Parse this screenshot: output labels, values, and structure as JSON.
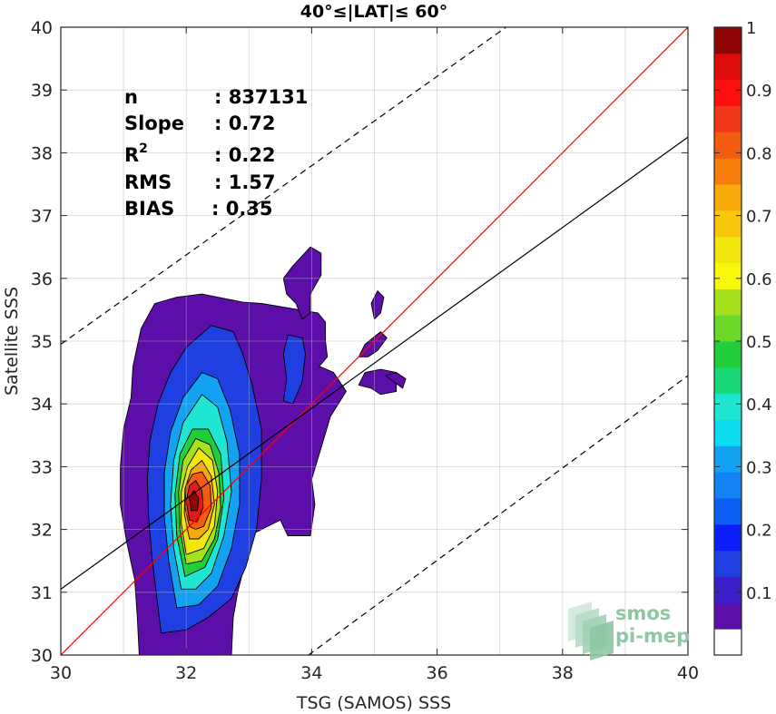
{
  "chart_data": {
    "type": "contour",
    "title": "40°≤|LAT|≤ 60°",
    "xlabel": "TSG (SAMOS) SSS",
    "ylabel": "Satellite SSS",
    "xlim": [
      30,
      40
    ],
    "ylim": [
      30,
      40
    ],
    "xticks": [
      "30",
      "32",
      "34",
      "36",
      "38",
      "40"
    ],
    "yticks": [
      "30",
      "31",
      "32",
      "33",
      "34",
      "35",
      "36",
      "37",
      "38",
      "39",
      "40"
    ],
    "grid": true,
    "stats": [
      {
        "label": "n",
        "value": ": 837131"
      },
      {
        "label": "Slope",
        "value": ": 0.72"
      },
      {
        "label": "R",
        "sup": "2",
        "value": ": 0.22"
      },
      {
        "label": "RMS",
        "value": ": 1.57"
      },
      {
        "label": "BIAS",
        "value": ": 0.35"
      }
    ],
    "lines": [
      {
        "kind": "one-to-one",
        "color": "#ff0000",
        "style": "solid",
        "points": [
          [
            30,
            30
          ],
          [
            40,
            40
          ]
        ]
      },
      {
        "kind": "regression",
        "color": "#000000",
        "style": "solid",
        "points": [
          [
            30,
            31.05
          ],
          [
            40,
            38.25
          ]
        ]
      },
      {
        "kind": "upper-bound",
        "color": "#000000",
        "style": "dashed",
        "points": [
          [
            30,
            34.95
          ],
          [
            37.1,
            40
          ]
        ]
      },
      {
        "kind": "lower-bound",
        "color": "#000000",
        "style": "dashed",
        "points": [
          [
            33.95,
            30
          ],
          [
            40,
            34.45
          ]
        ]
      }
    ],
    "contour_levels": [
      {
        "level": 0.05,
        "color": "#5c0fa8",
        "polygons": [
          [
            [
              31.25,
              30.0
            ],
            [
              31.22,
              30.6
            ],
            [
              31.18,
              31.2
            ],
            [
              31.05,
              31.8
            ],
            [
              30.95,
              32.4
            ],
            [
              30.95,
              33.0
            ],
            [
              31.0,
              33.6
            ],
            [
              31.12,
              34.1
            ],
            [
              31.15,
              34.6
            ],
            [
              31.28,
              35.2
            ],
            [
              31.5,
              35.6
            ],
            [
              31.85,
              35.7
            ],
            [
              32.25,
              35.75
            ],
            [
              32.6,
              35.68
            ],
            [
              32.9,
              35.62
            ],
            [
              33.2,
              35.6
            ],
            [
              33.5,
              35.55
            ],
            [
              33.8,
              35.5
            ],
            [
              34.1,
              35.45
            ],
            [
              34.22,
              35.3
            ],
            [
              34.22,
              35.0
            ],
            [
              34.25,
              34.75
            ],
            [
              34.12,
              34.6
            ],
            [
              34.35,
              34.5
            ],
            [
              34.55,
              34.2
            ],
            [
              34.3,
              33.8
            ],
            [
              34.15,
              33.3
            ],
            [
              34.0,
              32.8
            ],
            [
              34.05,
              32.4
            ],
            [
              33.98,
              31.9
            ],
            [
              33.62,
              31.9
            ],
            [
              33.5,
              32.15
            ],
            [
              33.3,
              32.05
            ],
            [
              33.1,
              31.95
            ],
            [
              33.0,
              31.7
            ],
            [
              32.92,
              31.4
            ],
            [
              32.82,
              31.0
            ],
            [
              32.75,
              30.6
            ],
            [
              32.72,
              30.0
            ]
          ],
          [
            [
              33.85,
              35.35
            ],
            [
              33.75,
              35.6
            ],
            [
              33.6,
              35.75
            ],
            [
              33.55,
              36.0
            ],
            [
              33.7,
              36.2
            ],
            [
              33.98,
              36.5
            ],
            [
              34.15,
              36.4
            ],
            [
              34.15,
              36.05
            ],
            [
              33.98,
              35.75
            ],
            [
              33.98,
              35.45
            ]
          ],
          [
            [
              34.75,
              34.75
            ],
            [
              34.85,
              34.95
            ],
            [
              35.1,
              35.15
            ],
            [
              35.2,
              35.05
            ],
            [
              35.05,
              34.85
            ],
            [
              34.9,
              34.75
            ]
          ],
          [
            [
              35.0,
              35.35
            ],
            [
              34.95,
              35.6
            ],
            [
              35.05,
              35.8
            ],
            [
              35.15,
              35.7
            ],
            [
              35.1,
              35.45
            ]
          ],
          [
            [
              34.75,
              34.3
            ],
            [
              34.85,
              34.5
            ],
            [
              35.1,
              34.55
            ],
            [
              35.35,
              34.5
            ],
            [
              35.35,
              34.2
            ],
            [
              35.1,
              34.15
            ],
            [
              34.95,
              34.25
            ]
          ],
          [
            [
              35.18,
              34.45
            ],
            [
              35.35,
              34.5
            ],
            [
              35.5,
              34.4
            ],
            [
              35.45,
              34.25
            ]
          ]
        ]
      },
      {
        "level": 0.15,
        "color": "#1f3fe0",
        "polygons": [
          [
            [
              31.6,
              30.35
            ],
            [
              31.52,
              31.0
            ],
            [
              31.45,
              31.6
            ],
            [
              31.4,
              32.2
            ],
            [
              31.38,
              32.8
            ],
            [
              31.42,
              33.4
            ],
            [
              31.55,
              34.0
            ],
            [
              31.75,
              34.5
            ],
            [
              32.0,
              34.9
            ],
            [
              32.4,
              35.25
            ],
            [
              32.75,
              35.15
            ],
            [
              32.9,
              34.8
            ],
            [
              33.05,
              34.3
            ],
            [
              33.2,
              33.6
            ],
            [
              33.2,
              32.8
            ],
            [
              33.12,
              32.0
            ],
            [
              32.95,
              31.4
            ],
            [
              32.72,
              30.9
            ],
            [
              32.35,
              30.6
            ],
            [
              32.0,
              30.4
            ]
          ],
          [
            [
              33.62,
              35.1
            ],
            [
              33.55,
              34.8
            ],
            [
              33.6,
              34.4
            ],
            [
              33.55,
              34.05
            ],
            [
              33.7,
              34.0
            ],
            [
              33.85,
              34.35
            ],
            [
              33.9,
              34.8
            ],
            [
              33.85,
              35.05
            ]
          ]
        ]
      },
      {
        "level": 0.25,
        "color": "#12a2f0",
        "polygons": [
          [
            [
              31.85,
              30.75
            ],
            [
              31.72,
              31.5
            ],
            [
              31.65,
              32.2
            ],
            [
              31.65,
              32.9
            ],
            [
              31.75,
              33.55
            ],
            [
              31.95,
              34.1
            ],
            [
              32.25,
              34.5
            ],
            [
              32.5,
              34.4
            ],
            [
              32.7,
              33.9
            ],
            [
              32.85,
              33.2
            ],
            [
              32.85,
              32.4
            ],
            [
              32.72,
              31.7
            ],
            [
              32.5,
              31.1
            ],
            [
              32.2,
              30.8
            ]
          ]
        ]
      },
      {
        "level": 0.35,
        "color": "#1ee6d2",
        "polygons": [
          [
            [
              31.92,
              31.05
            ],
            [
              31.8,
              31.7
            ],
            [
              31.75,
              32.4
            ],
            [
              31.8,
              33.1
            ],
            [
              31.95,
              33.7
            ],
            [
              32.25,
              34.15
            ],
            [
              32.5,
              33.95
            ],
            [
              32.65,
              33.4
            ],
            [
              32.72,
              32.6
            ],
            [
              32.6,
              31.9
            ],
            [
              32.4,
              31.3
            ],
            [
              32.15,
              31.05
            ]
          ]
        ]
      },
      {
        "level": 0.45,
        "color": "#1fce3a",
        "polygons": [
          [
            [
              31.98,
              31.25
            ],
            [
              31.85,
              31.9
            ],
            [
              31.82,
              32.55
            ],
            [
              31.9,
              33.2
            ],
            [
              32.1,
              33.6
            ],
            [
              32.35,
              33.6
            ],
            [
              32.55,
              33.2
            ],
            [
              32.6,
              32.5
            ],
            [
              32.5,
              31.85
            ],
            [
              32.3,
              31.4
            ]
          ]
        ]
      },
      {
        "level": 0.55,
        "color": "#a6e11d",
        "polygons": [
          [
            [
              32.0,
              31.45
            ],
            [
              31.9,
              32.0
            ],
            [
              31.88,
              32.6
            ],
            [
              31.95,
              33.1
            ],
            [
              32.15,
              33.45
            ],
            [
              32.38,
              33.35
            ],
            [
              32.52,
              32.9
            ],
            [
              32.55,
              32.35
            ],
            [
              32.45,
              31.85
            ],
            [
              32.25,
              31.5
            ]
          ]
        ]
      },
      {
        "level": 0.65,
        "color": "#f2e60c",
        "polygons": [
          [
            [
              32.0,
              31.6
            ],
            [
              31.92,
              32.1
            ],
            [
              31.92,
              32.6
            ],
            [
              32.02,
              33.0
            ],
            [
              32.2,
              33.3
            ],
            [
              32.42,
              33.1
            ],
            [
              32.5,
              32.6
            ],
            [
              32.45,
              32.05
            ],
            [
              32.28,
              31.7
            ]
          ]
        ]
      },
      {
        "level": 0.75,
        "color": "#f8aa0a",
        "polygons": [
          [
            [
              32.05,
              31.85
            ],
            [
              31.97,
              32.25
            ],
            [
              31.98,
              32.65
            ],
            [
              32.08,
              32.95
            ],
            [
              32.25,
              33.1
            ],
            [
              32.4,
              32.85
            ],
            [
              32.45,
              32.4
            ],
            [
              32.35,
              32.0
            ],
            [
              32.2,
              31.85
            ]
          ]
        ]
      },
      {
        "level": 0.85,
        "color": "#f45c12",
        "polygons": [
          [
            [
              32.05,
              32.05
            ],
            [
              31.98,
              32.35
            ],
            [
              32.0,
              32.7
            ],
            [
              32.1,
              32.88
            ],
            [
              32.25,
              32.92
            ],
            [
              32.38,
              32.7
            ],
            [
              32.4,
              32.35
            ],
            [
              32.28,
              32.05
            ],
            [
              32.15,
              32.0
            ]
          ]
        ]
      },
      {
        "level": 0.9,
        "color": "#e31a1c",
        "polygons": [
          [
            [
              32.05,
              32.15
            ],
            [
              32.0,
              32.45
            ],
            [
              32.05,
              32.7
            ],
            [
              32.15,
              32.78
            ],
            [
              32.25,
              32.62
            ],
            [
              32.27,
              32.35
            ],
            [
              32.17,
              32.12
            ]
          ]
        ]
      },
      {
        "level": 0.95,
        "color": "#8f0505",
        "polygons": [
          [
            [
              32.08,
              32.3
            ],
            [
              32.05,
              32.5
            ],
            [
              32.12,
              32.62
            ],
            [
              32.2,
              32.5
            ],
            [
              32.18,
              32.3
            ]
          ]
        ]
      }
    ],
    "colorbar": {
      "colors": [
        "#ffffff",
        "#5c0fa8",
        "#3c1ec8",
        "#1f3fe0",
        "#0a1ef8",
        "#0a5ef0",
        "#1282f4",
        "#12a2f0",
        "#0cdcf2",
        "#1ee6d2",
        "#19d878",
        "#1fce3a",
        "#6cd82a",
        "#a6e11d",
        "#f8f80c",
        "#f2e60c",
        "#f8c60a",
        "#f8aa0a",
        "#f67e0a",
        "#f45c12",
        "#f03818",
        "#fb1010",
        "#dc0c0c",
        "#8f0505"
      ],
      "ticks": [
        "0.1",
        "0.2",
        "0.3",
        "0.4",
        "0.5",
        "0.6",
        "0.7",
        "0.8",
        "0.9",
        "1"
      ],
      "tick_values": [
        0.1,
        0.2,
        0.3,
        0.4,
        0.5,
        0.6,
        0.7,
        0.8,
        0.9,
        1.0
      ],
      "range": [
        0,
        1
      ]
    },
    "watermark": [
      "smos",
      "pi-mep"
    ]
  }
}
